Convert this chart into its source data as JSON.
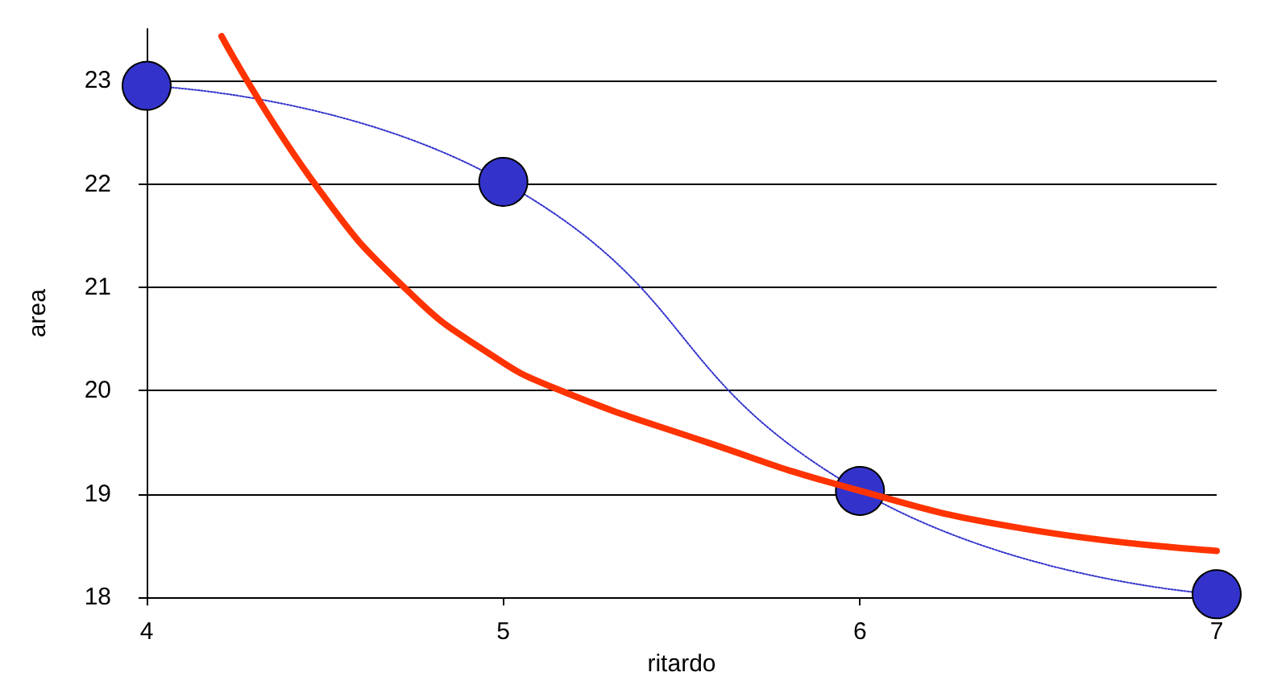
{
  "chart_data": {
    "type": "line",
    "xlabel": "ritardo",
    "ylabel": "area",
    "xlim": [
      4,
      7
    ],
    "xticks": [
      4,
      5,
      6,
      7
    ],
    "ylim": [
      18,
      23.5
    ],
    "yticks": [
      18,
      19,
      20,
      21,
      22,
      23
    ],
    "grid": "y",
    "marker": "circle",
    "line_style": "dotted",
    "series": [
      {
        "color": "#3333cc",
        "x": [
          4,
          5,
          6,
          7
        ],
        "values": [
          22.95,
          22.02,
          19.03,
          18.03
        ]
      },
      {
        "color": "#ff3300",
        "marker": "none",
        "line_style": "solid",
        "x": [
          4.21,
          4.48,
          4.74,
          4.96,
          5.14,
          5.58,
          5.97,
          6.45,
          7
        ],
        "values": [
          23.43,
          21.96,
          20.94,
          20.36,
          20.03,
          19.49,
          19.06,
          18.67,
          18.45
        ]
      }
    ]
  }
}
